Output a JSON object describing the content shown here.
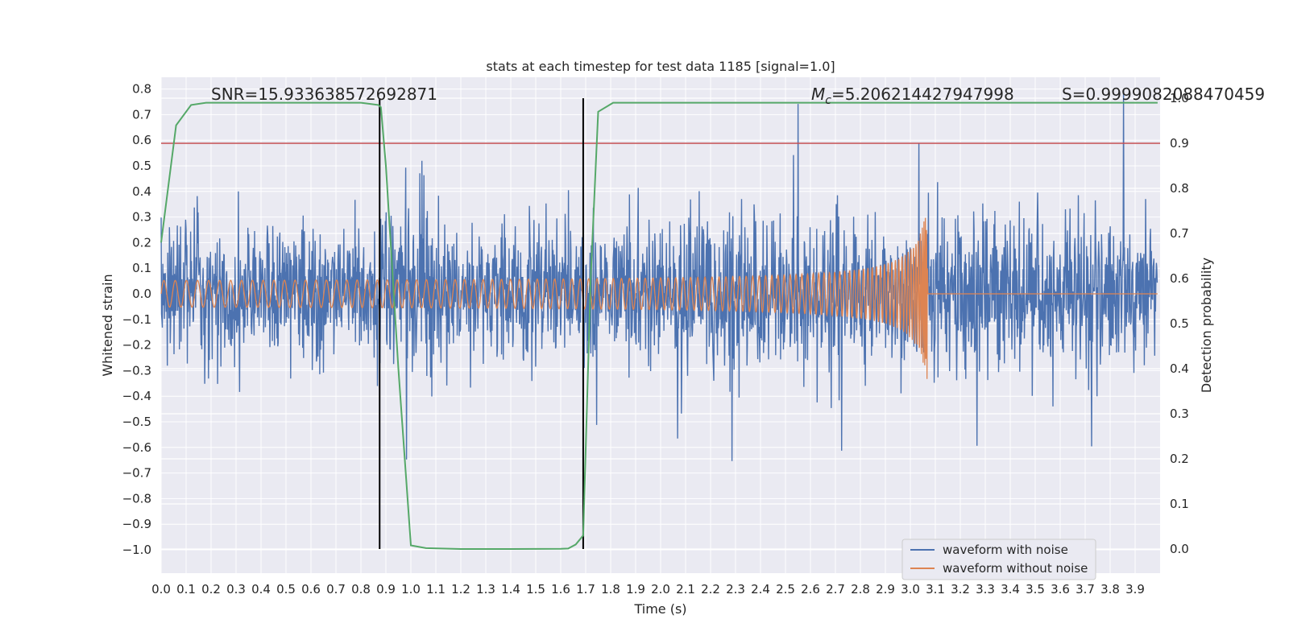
{
  "chart_data": {
    "type": "line",
    "title": "stats at each timestep for test data 1185 [signal=1.0]",
    "xlabel": "Time (s)",
    "ylabel": "Whitened strain",
    "y2label": "Detection probability",
    "xlim": [
      0.0,
      4.0
    ],
    "ylim": [
      -1.0,
      0.8
    ],
    "y2lim": [
      0.0,
      1.0
    ],
    "xticks": [
      "0.0",
      "0.1",
      "0.2",
      "0.3",
      "0.4",
      "0.5",
      "0.6",
      "0.7",
      "0.8",
      "0.9",
      "1.0",
      "1.1",
      "1.2",
      "1.3",
      "1.4",
      "1.5",
      "1.6",
      "1.7",
      "1.8",
      "1.9",
      "2.0",
      "2.1",
      "2.2",
      "2.3",
      "2.4",
      "2.5",
      "2.6",
      "2.7",
      "2.8",
      "2.9",
      "3.0",
      "3.1",
      "3.2",
      "3.3",
      "3.4",
      "3.5",
      "3.6",
      "3.7",
      "3.8",
      "3.9"
    ],
    "yticks": [
      "0.8",
      "0.7",
      "0.6",
      "0.5",
      "0.4",
      "0.3",
      "0.2",
      "0.1",
      "0.0",
      "−0.1",
      "−0.2",
      "−0.3",
      "−0.4",
      "−0.5",
      "−0.6",
      "−0.7",
      "−0.8",
      "−0.9",
      "−1.0"
    ],
    "y2ticks": [
      "1.0",
      "0.9",
      "0.8",
      "0.7",
      "0.6",
      "0.5",
      "0.4",
      "0.3",
      "0.2",
      "0.1",
      "0.0"
    ],
    "annotations": {
      "snr": "SNR=15.933638572692871",
      "mc_prefix": "M",
      "mc_sub": "c",
      "mc_value": "=5.206214427947998",
      "s": "S=0.9999082088470459"
    },
    "threshold_probability": 0.9,
    "vertical_lines_x": [
      0.875,
      1.69
    ],
    "series": [
      {
        "name": "waveform with noise",
        "color": "#4c72b0",
        "kind": "noise",
        "amplitude_typical": 0.3,
        "amplitude_max": 0.8
      },
      {
        "name": "waveform without noise",
        "color": "#dd8452",
        "kind": "chirp",
        "amplitude_start": 0.045,
        "amplitude_peak": 0.37,
        "merger_time": 3.07
      },
      {
        "name": "detection probability",
        "color": "#55a868",
        "kind": "probability",
        "axis": "right",
        "x": [
          0.0,
          0.06,
          0.12,
          0.18,
          0.25,
          0.4,
          0.6,
          0.8,
          0.87,
          0.88,
          0.9,
          0.95,
          1.0,
          1.06,
          1.2,
          1.4,
          1.6,
          1.63,
          1.66,
          1.69,
          1.72,
          1.75,
          1.81,
          2.0,
          2.5,
          3.0,
          3.5,
          4.0
        ],
        "y": [
          0.68,
          0.94,
          0.985,
          0.99,
          0.99,
          0.99,
          0.99,
          0.99,
          0.985,
          0.98,
          0.85,
          0.4,
          0.008,
          0.002,
          0.0,
          0.0,
          0.0005,
          0.001,
          0.01,
          0.03,
          0.6,
          0.97,
          0.99,
          0.99,
          0.99,
          0.99,
          0.99,
          0.99
        ]
      }
    ],
    "legend": {
      "position": "bottom-right",
      "entries": [
        "waveform with noise",
        "waveform without noise"
      ]
    }
  }
}
